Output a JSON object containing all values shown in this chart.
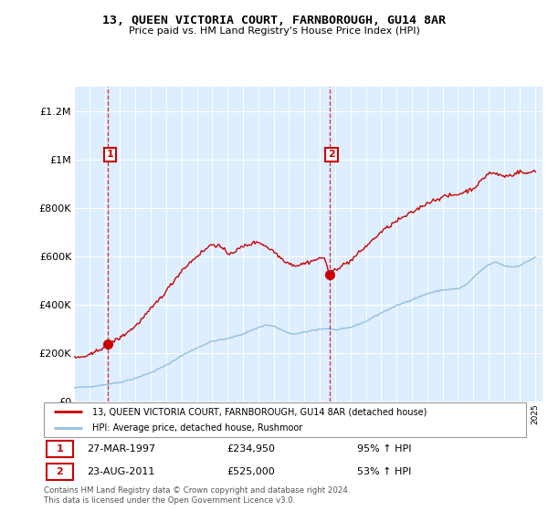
{
  "title": "13, QUEEN VICTORIA COURT, FARNBOROUGH, GU14 8AR",
  "subtitle": "Price paid vs. HM Land Registry's House Price Index (HPI)",
  "sale1_price": 234950,
  "sale1_label": "27-MAR-1997",
  "sale1_pct": "95% ↑ HPI",
  "sale2_price": 525000,
  "sale2_label": "23-AUG-2011",
  "sale2_pct": "53% ↑ HPI",
  "hpi_color": "#92c0e0",
  "price_color": "#cc0000",
  "bg_color": "#ddeeff",
  "legend_label_price": "13, QUEEN VICTORIA COURT, FARNBOROUGH, GU14 8AR (detached house)",
  "legend_label_hpi": "HPI: Average price, detached house, Rushmoor",
  "footer": "Contains HM Land Registry data © Crown copyright and database right 2024.\nThis data is licensed under the Open Government Licence v3.0.",
  "ylim": [
    0,
    1300000
  ],
  "yticks": [
    0,
    200000,
    400000,
    600000,
    800000,
    1000000,
    1200000
  ],
  "ytick_labels": [
    "£0",
    "£200K",
    "£400K",
    "£600K",
    "£800K",
    "£1M",
    "£1.2M"
  ],
  "hpi_anchors_x": [
    1995.0,
    1996.0,
    1997.0,
    1998.0,
    1999.0,
    2000.0,
    2001.0,
    2002.0,
    2003.0,
    2004.0,
    2005.0,
    2006.0,
    2007.0,
    2007.5,
    2008.0,
    2008.5,
    2009.0,
    2009.5,
    2010.0,
    2010.5,
    2011.0,
    2011.5,
    2012.0,
    2012.5,
    2013.0,
    2014.0,
    2015.0,
    2016.0,
    2017.0,
    2018.0,
    2019.0,
    2020.0,
    2020.5,
    2021.0,
    2021.5,
    2022.0,
    2022.5,
    2023.0,
    2023.5,
    2024.0,
    2025.0
  ],
  "hpi_anchors_y": [
    55000,
    60000,
    68000,
    78000,
    95000,
    118000,
    148000,
    188000,
    220000,
    248000,
    258000,
    278000,
    305000,
    315000,
    310000,
    295000,
    280000,
    278000,
    285000,
    292000,
    298000,
    300000,
    295000,
    298000,
    305000,
    330000,
    365000,
    395000,
    420000,
    445000,
    460000,
    465000,
    480000,
    510000,
    540000,
    565000,
    575000,
    560000,
    555000,
    560000,
    595000
  ],
  "price_anchors_x": [
    1995.0,
    1996.0,
    1997.21,
    1998.0,
    1999.0,
    2000.0,
    2001.0,
    2002.0,
    2003.0,
    2004.0,
    2004.5,
    2005.0,
    2005.5,
    2006.0,
    2007.0,
    2007.5,
    2008.0,
    2008.5,
    2009.0,
    2009.5,
    2010.0,
    2010.5,
    2011.0,
    2011.3,
    2011.625,
    2011.65,
    2012.0,
    2013.0,
    2014.0,
    2015.0,
    2016.0,
    2017.0,
    2017.5,
    2018.0,
    2019.0,
    2020.0,
    2021.0,
    2021.5,
    2022.0,
    2022.5,
    2023.0,
    2023.5,
    2024.0,
    2024.5,
    2025.0
  ],
  "price_anchors_y": [
    178000,
    188000,
    234950,
    262000,
    310000,
    380000,
    455000,
    540000,
    600000,
    650000,
    640000,
    610000,
    620000,
    640000,
    660000,
    640000,
    620000,
    590000,
    570000,
    560000,
    570000,
    580000,
    590000,
    595000,
    525000,
    530000,
    545000,
    580000,
    640000,
    700000,
    745000,
    780000,
    800000,
    820000,
    845000,
    855000,
    880000,
    910000,
    945000,
    940000,
    930000,
    935000,
    950000,
    940000,
    955000
  ]
}
